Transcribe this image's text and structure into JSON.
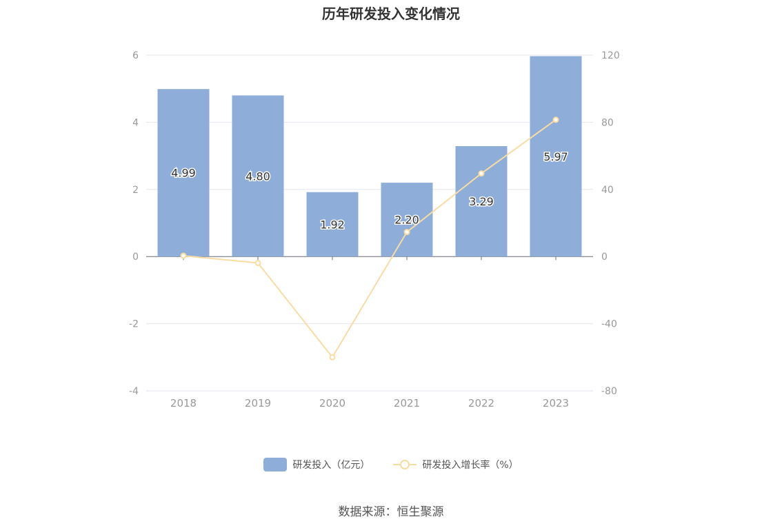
{
  "chart_data": {
    "type": "bar",
    "title": "历年研发投入变化情况",
    "categories": [
      "2018",
      "2019",
      "2020",
      "2021",
      "2022",
      "2023"
    ],
    "series": [
      {
        "name": "研发投入（亿元）",
        "type": "bar",
        "axis": "left",
        "values": [
          4.99,
          4.8,
          1.92,
          2.2,
          3.29,
          5.97
        ],
        "labels": [
          "4.99",
          "4.80",
          "1.92",
          "2.20",
          "3.29",
          "5.97"
        ]
      },
      {
        "name": "研发投入增长率（%）",
        "type": "line",
        "axis": "right",
        "values": [
          0.5,
          -3.8,
          -60.0,
          14.6,
          49.5,
          81.5
        ]
      }
    ],
    "y_left": {
      "min": -4,
      "max": 6,
      "ticks": [
        "6",
        "4",
        "2",
        "0",
        "-2",
        "-4"
      ]
    },
    "y_right": {
      "min": -80,
      "max": 120,
      "ticks": [
        "120",
        "80",
        "40",
        "0",
        "-40",
        "-80"
      ]
    },
    "grid": true,
    "legend_position": "bottom",
    "colors": {
      "bar": "#8eaed9",
      "line": "#f9dca2",
      "grid": "#e3e6f0",
      "axis_text": "#999999",
      "label_text": "#333333"
    }
  },
  "source_text": "数据来源：恒生聚源"
}
